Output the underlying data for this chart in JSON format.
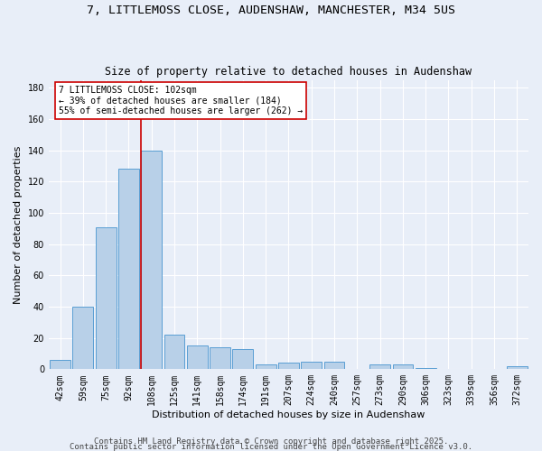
{
  "title": "7, LITTLEMOSS CLOSE, AUDENSHAW, MANCHESTER, M34 5US",
  "subtitle": "Size of property relative to detached houses in Audenshaw",
  "xlabel": "Distribution of detached houses by size in Audenshaw",
  "ylabel": "Number of detached properties",
  "categories": [
    "42sqm",
    "59sqm",
    "75sqm",
    "92sqm",
    "108sqm",
    "125sqm",
    "141sqm",
    "158sqm",
    "174sqm",
    "191sqm",
    "207sqm",
    "224sqm",
    "240sqm",
    "257sqm",
    "273sqm",
    "290sqm",
    "306sqm",
    "323sqm",
    "339sqm",
    "356sqm",
    "372sqm"
  ],
  "values": [
    6,
    40,
    91,
    128,
    140,
    22,
    15,
    14,
    13,
    3,
    4,
    5,
    5,
    0,
    3,
    3,
    1,
    0,
    0,
    0,
    2
  ],
  "bar_color": "#b8d0e8",
  "bar_edge_color": "#5a9fd4",
  "vline_x_index": 3.55,
  "vline_color": "#cc0000",
  "annotation_line1": "7 LITTLEMOSS CLOSE: 102sqm",
  "annotation_line2": "← 39% of detached houses are smaller (184)",
  "annotation_line3": "55% of semi-detached houses are larger (262) →",
  "annotation_box_color": "#ffffff",
  "annotation_box_edge": "#cc0000",
  "ylim": [
    0,
    185
  ],
  "yticks": [
    0,
    20,
    40,
    60,
    80,
    100,
    120,
    140,
    160,
    180
  ],
  "footer1": "Contains HM Land Registry data © Crown copyright and database right 2025.",
  "footer2": "Contains public sector information licensed under the Open Government Licence v3.0.",
  "bg_color": "#e8eef8",
  "grid_color": "#ffffff",
  "title_fontsize": 9.5,
  "subtitle_fontsize": 8.5,
  "axis_label_fontsize": 8,
  "tick_fontsize": 7,
  "annotation_fontsize": 7,
  "footer_fontsize": 6.5
}
